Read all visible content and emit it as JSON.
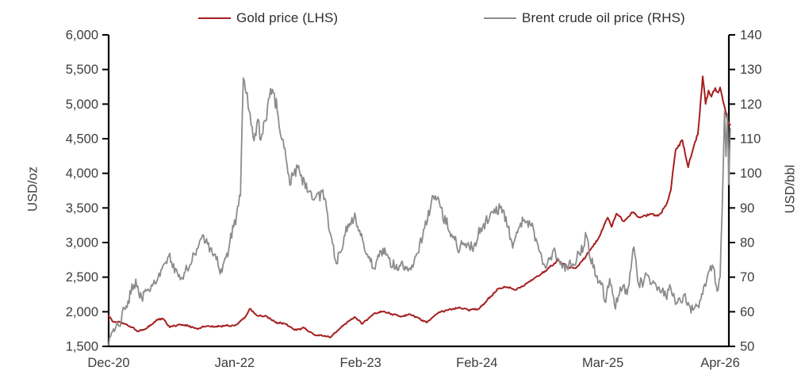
{
  "chart_data": {
    "type": "line",
    "x_axis": {
      "unit": "month index from Dec-20",
      "range_months": [
        0,
        64
      ],
      "tick_months": [
        0,
        13,
        26,
        38,
        51,
        64
      ],
      "tick_labels": [
        "Dec-20",
        "Jan-22",
        "Feb-23",
        "Feb-24",
        "Mar-25",
        "Apr-26"
      ]
    },
    "left_axis": {
      "label": "USD/oz",
      "min": 1500,
      "max": 6000,
      "step": 500,
      "tick_labels": [
        "6,000",
        "5,500",
        "5,000",
        "4,500",
        "4,000",
        "3,500",
        "3,000",
        "2,500",
        "2,000",
        "1,500"
      ]
    },
    "right_axis": {
      "label": "USD/bbl",
      "min": 50,
      "max": 140,
      "step": 10,
      "tick_labels": [
        "140",
        "130",
        "120",
        "110",
        "100",
        "90",
        "80",
        "70",
        "60",
        "50"
      ]
    },
    "legend_position": "top",
    "grid": false,
    "series": [
      {
        "name": "Gold price (LHS)",
        "axis": "left",
        "color": "#A61E1E",
        "points": [
          [
            0,
            1945
          ],
          [
            0.4,
            1860
          ],
          [
            1.2,
            1848
          ],
          [
            2.2,
            1790
          ],
          [
            3.1,
            1715
          ],
          [
            4,
            1770
          ],
          [
            5.1,
            1893
          ],
          [
            5.6,
            1898
          ],
          [
            6.3,
            1778
          ],
          [
            7.2,
            1812
          ],
          [
            8.2,
            1798
          ],
          [
            9.1,
            1757
          ],
          [
            10,
            1788
          ],
          [
            11,
            1783
          ],
          [
            12,
            1802
          ],
          [
            13,
            1798
          ],
          [
            14,
            1908
          ],
          [
            14.6,
            2045
          ],
          [
            15.3,
            1948
          ],
          [
            16.3,
            1932
          ],
          [
            17.2,
            1845
          ],
          [
            18.2,
            1828
          ],
          [
            19.2,
            1736
          ],
          [
            20.2,
            1764
          ],
          [
            21.2,
            1666
          ],
          [
            22,
            1656
          ],
          [
            22.9,
            1632
          ],
          [
            24.1,
            1796
          ],
          [
            25.4,
            1924
          ],
          [
            26.2,
            1826
          ],
          [
            27.4,
            1974
          ],
          [
            28.3,
            2004
          ],
          [
            29.2,
            1969
          ],
          [
            30.2,
            1931
          ],
          [
            31.1,
            1961
          ],
          [
            31.9,
            1916
          ],
          [
            32.8,
            1842
          ],
          [
            34,
            1984
          ],
          [
            35.1,
            2028
          ],
          [
            36.2,
            2062
          ],
          [
            37.1,
            2026
          ],
          [
            38.2,
            2044
          ],
          [
            39.4,
            2218
          ],
          [
            40.3,
            2344
          ],
          [
            41.2,
            2354
          ],
          [
            42.1,
            2322
          ],
          [
            43.1,
            2404
          ],
          [
            44.1,
            2504
          ],
          [
            45,
            2584
          ],
          [
            46.4,
            2744
          ],
          [
            47.3,
            2656
          ],
          [
            48.2,
            2628
          ],
          [
            49.3,
            2814
          ],
          [
            50,
            2948
          ],
          [
            50.5,
            3048
          ],
          [
            51.1,
            3244
          ],
          [
            51.5,
            3358
          ],
          [
            51.9,
            3224
          ],
          [
            52.4,
            3418
          ],
          [
            53.2,
            3306
          ],
          [
            54,
            3438
          ],
          [
            54.9,
            3362
          ],
          [
            55.9,
            3414
          ],
          [
            56.7,
            3386
          ],
          [
            57.5,
            3532
          ],
          [
            58,
            3752
          ],
          [
            58.5,
            4332
          ],
          [
            59.2,
            4478
          ],
          [
            59.8,
            4086
          ],
          [
            60.3,
            4348
          ],
          [
            60.8,
            4558
          ],
          [
            61.3,
            5398
          ],
          [
            61.6,
            5004
          ],
          [
            61.9,
            5198
          ],
          [
            62.2,
            5102
          ],
          [
            62.6,
            5238
          ],
          [
            62.9,
            5162
          ],
          [
            63.1,
            5240
          ],
          [
            63.5,
            4992
          ],
          [
            63.9,
            4742
          ],
          [
            64.15,
            4700
          ]
        ]
      },
      {
        "name": "Brent crude oil price (RHS)",
        "axis": "right",
        "color": "#8C8C8C",
        "points": [
          [
            0,
            50
          ],
          [
            0.2,
            53
          ],
          [
            1,
            56
          ],
          [
            2,
            63
          ],
          [
            2.8,
            69.5
          ],
          [
            3.2,
            64
          ],
          [
            4,
            66
          ],
          [
            5,
            69
          ],
          [
            6.2,
            76
          ],
          [
            7.5,
            69.5
          ],
          [
            8.5,
            74
          ],
          [
            9.7,
            82
          ],
          [
            10.5,
            78
          ],
          [
            11.7,
            71.5
          ],
          [
            12.5,
            80
          ],
          [
            13.2,
            88
          ],
          [
            13.6,
            93
          ],
          [
            13.9,
            128
          ],
          [
            15,
            109
          ],
          [
            15.4,
            116
          ],
          [
            15.7,
            110
          ],
          [
            16.6,
            122
          ],
          [
            17,
            124
          ],
          [
            17.4,
            118
          ],
          [
            18.1,
            107
          ],
          [
            18.7,
            97
          ],
          [
            19.5,
            102
          ],
          [
            20.3,
            96
          ],
          [
            21.3,
            92.5
          ],
          [
            22.1,
            95
          ],
          [
            23.5,
            74
          ],
          [
            24.3,
            82
          ],
          [
            25.4,
            88
          ],
          [
            26.2,
            80.5
          ],
          [
            27.3,
            72.5
          ],
          [
            28.3,
            78.5
          ],
          [
            29.5,
            72.5
          ],
          [
            30.3,
            74.5
          ],
          [
            31,
            72
          ],
          [
            31.8,
            77
          ],
          [
            32.6,
            84
          ],
          [
            33.5,
            93.5
          ],
          [
            34.3,
            90
          ],
          [
            35.3,
            82
          ],
          [
            36.2,
            78
          ],
          [
            36.8,
            80
          ],
          [
            37.5,
            78
          ],
          [
            38.3,
            83
          ],
          [
            39.3,
            87
          ],
          [
            40,
            90.5
          ],
          [
            40.8,
            89
          ],
          [
            41.7,
            78.5
          ],
          [
            42.7,
            87
          ],
          [
            43.5,
            85
          ],
          [
            44.3,
            79
          ],
          [
            45.1,
            72.5
          ],
          [
            45.9,
            78
          ],
          [
            46.8,
            72.5
          ],
          [
            48,
            74
          ],
          [
            49.3,
            81.5
          ],
          [
            50.2,
            70.5
          ],
          [
            50.9,
            68
          ],
          [
            51.3,
            62.5
          ],
          [
            51.7,
            69.5
          ],
          [
            52.3,
            61
          ],
          [
            52.8,
            67.5
          ],
          [
            53.5,
            65
          ],
          [
            54.2,
            78.5
          ],
          [
            54.7,
            67.5
          ],
          [
            55.6,
            70.5
          ],
          [
            56.4,
            68
          ],
          [
            57.5,
            64.5
          ],
          [
            58,
            67
          ],
          [
            58.6,
            62.5
          ],
          [
            59.3,
            64.5
          ],
          [
            60,
            61.5
          ],
          [
            60.4,
            60.5
          ],
          [
            61,
            63
          ],
          [
            62,
            71.5
          ],
          [
            62.4,
            73
          ],
          [
            62.8,
            66
          ],
          [
            63.1,
            70
          ],
          [
            63.4,
            100
          ],
          [
            63.55,
            118
          ],
          [
            63.7,
            105
          ],
          [
            63.85,
            117
          ],
          [
            64,
            97
          ],
          [
            64.15,
            113
          ]
        ]
      }
    ]
  }
}
